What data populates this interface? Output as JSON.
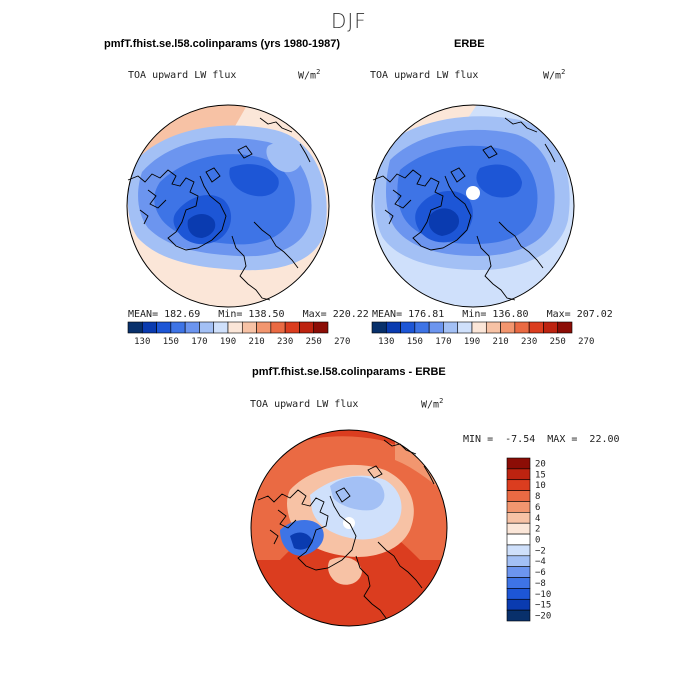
{
  "figure": {
    "title": "DJF"
  },
  "panels": [
    {
      "title": "pmfT.fhist.se.l58.colinparams (yrs 1980-1987)",
      "variable": "TOA upward LW flux",
      "units": "W/m",
      "units_sup": "2",
      "stats_text": "MEAN= 182.69   Min= 138.50   Max= 220.22"
    },
    {
      "title": "ERBE",
      "variable": "TOA upward LW flux",
      "units": "W/m",
      "units_sup": "2",
      "stats_text": "MEAN= 176.81   Min= 136.80   Max= 207.02"
    },
    {
      "title": "pmfT.fhist.se.l58.colinparams - ERBE",
      "variable": "TOA upward LW flux",
      "units": "W/m",
      "units_sup": "2",
      "stats_text": "MIN =  -7.54  MAX =  22.00"
    }
  ],
  "chart_data": [
    {
      "type": "heatmap",
      "projection": "north-polar-stereographic",
      "title": "pmfT.fhist.se.l58.colinparams (yrs 1980-1987)",
      "variable": "TOA upward LW flux",
      "units": "W/m2",
      "stats": {
        "mean": 182.69,
        "min": 138.5,
        "max": 220.22
      },
      "colorbar": {
        "orientation": "horizontal",
        "ticks": [
          "130",
          "150",
          "170",
          "190",
          "210",
          "230",
          "250",
          "270"
        ],
        "colors": [
          "#08306b",
          "#0a3bb0",
          "#1d56d6",
          "#3e74e6",
          "#6c95ef",
          "#a3c0f5",
          "#cfe0fb",
          "#fbe6d8",
          "#f7c2a5",
          "#f2966f",
          "#ea6a43",
          "#db3d1f",
          "#bd2310",
          "#8c0d06"
        ]
      }
    },
    {
      "type": "heatmap",
      "projection": "north-polar-stereographic",
      "title": "ERBE",
      "variable": "TOA upward LW flux",
      "units": "W/m2",
      "stats": {
        "mean": 176.81,
        "min": 136.8,
        "max": 207.02
      },
      "colorbar": {
        "orientation": "horizontal",
        "ticks": [
          "130",
          "150",
          "170",
          "190",
          "210",
          "230",
          "250",
          "270"
        ],
        "colors": [
          "#08306b",
          "#0a3bb0",
          "#1d56d6",
          "#3e74e6",
          "#6c95ef",
          "#a3c0f5",
          "#cfe0fb",
          "#fbe6d8",
          "#f7c2a5",
          "#f2966f",
          "#ea6a43",
          "#db3d1f",
          "#bd2310",
          "#8c0d06"
        ]
      }
    },
    {
      "type": "heatmap",
      "projection": "north-polar-stereographic",
      "title": "pmfT.fhist.se.l58.colinparams - ERBE",
      "variable": "TOA upward LW flux",
      "units": "W/m2",
      "stats": {
        "min": -7.54,
        "max": 22.0
      },
      "colorbar": {
        "orientation": "vertical",
        "ticks": [
          "20",
          "15",
          "10",
          "8",
          "6",
          "4",
          "2",
          "0",
          "−2",
          "−4",
          "−6",
          "−8",
          "−10",
          "−15",
          "−20"
        ],
        "colors": [
          "#8c0d06",
          "#bd2310",
          "#db3d1f",
          "#ea6a43",
          "#f2966f",
          "#f7c2a5",
          "#fbe6d8",
          "#ffffff",
          "#cfe0fb",
          "#a3c0f5",
          "#6c95ef",
          "#3e74e6",
          "#1d56d6",
          "#0a3bb0",
          "#08306b"
        ]
      }
    }
  ]
}
